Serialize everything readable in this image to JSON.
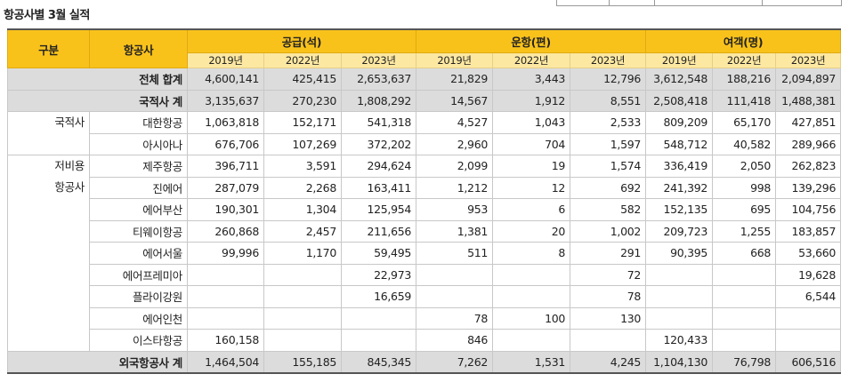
{
  "header": {
    "title": "항공사별 3월 실적"
  },
  "table": {
    "col_category": "구분",
    "col_airline": "항공사",
    "groups": [
      {
        "label": "공급(석)",
        "years": [
          "2019년",
          "2022년",
          "2023년"
        ]
      },
      {
        "label": "운항(편)",
        "years": [
          "2019년",
          "2022년",
          "2023년"
        ]
      },
      {
        "label": "여객(명)",
        "years": [
          "2019년",
          "2022년",
          "2023년"
        ]
      }
    ],
    "total": {
      "label": "전체 합계",
      "values": [
        "4,600,141",
        "425,415",
        "2,653,637",
        "21,829",
        "3,443",
        "12,796",
        "3,612,548",
        "188,216",
        "2,094,897"
      ]
    },
    "domestic_total": {
      "label": "국적사 계",
      "values": [
        "3,135,637",
        "270,230",
        "1,808,292",
        "14,567",
        "1,912",
        "8,551",
        "2,508,418",
        "111,418",
        "1,488,381"
      ]
    },
    "sections": [
      {
        "label": "국적사",
        "rows": [
          {
            "name": "대한항공",
            "values": [
              "1,063,818",
              "152,171",
              "541,318",
              "4,527",
              "1,043",
              "2,533",
              "809,209",
              "65,170",
              "427,851"
            ]
          },
          {
            "name": "아시아나",
            "values": [
              "676,706",
              "107,269",
              "372,202",
              "2,960",
              "704",
              "1,597",
              "548,712",
              "40,582",
              "289,966"
            ]
          }
        ]
      },
      {
        "label": "저비용\n항공사",
        "rows": [
          {
            "name": "제주항공",
            "values": [
              "396,711",
              "3,591",
              "294,624",
              "2,099",
              "19",
              "1,574",
              "336,419",
              "2,050",
              "262,823"
            ]
          },
          {
            "name": "진에어",
            "values": [
              "287,079",
              "2,268",
              "163,411",
              "1,212",
              "12",
              "692",
              "241,392",
              "998",
              "139,296"
            ]
          },
          {
            "name": "에어부산",
            "values": [
              "190,301",
              "1,304",
              "125,954",
              "953",
              "6",
              "582",
              "152,135",
              "695",
              "104,756"
            ]
          },
          {
            "name": "티웨이항공",
            "values": [
              "260,868",
              "2,457",
              "211,656",
              "1,381",
              "20",
              "1,002",
              "209,723",
              "1,255",
              "183,857"
            ]
          },
          {
            "name": "에어서울",
            "values": [
              "99,996",
              "1,170",
              "59,495",
              "511",
              "8",
              "291",
              "90,395",
              "668",
              "53,660"
            ]
          },
          {
            "name": "에어프레미아",
            "values": [
              null,
              null,
              "22,973",
              null,
              null,
              "72",
              null,
              null,
              "19,628"
            ]
          },
          {
            "name": "플라이강원",
            "values": [
              null,
              null,
              "16,659",
              null,
              null,
              "78",
              null,
              null,
              "6,544"
            ]
          },
          {
            "name": "에어인천",
            "values": [
              null,
              null,
              null,
              "78",
              "100",
              "130",
              null,
              null,
              null
            ]
          },
          {
            "name": "이스타항공",
            "values": [
              "160,158",
              null,
              null,
              "846",
              null,
              null,
              "120,433",
              null,
              null
            ]
          }
        ]
      }
    ],
    "foreign_total": {
      "label": "외국항공사 계",
      "values": [
        "1,464,504",
        "155,185",
        "845,345",
        "7,262",
        "1,531",
        "4,245",
        "1,104,130",
        "76,798",
        "606,516"
      ]
    }
  }
}
